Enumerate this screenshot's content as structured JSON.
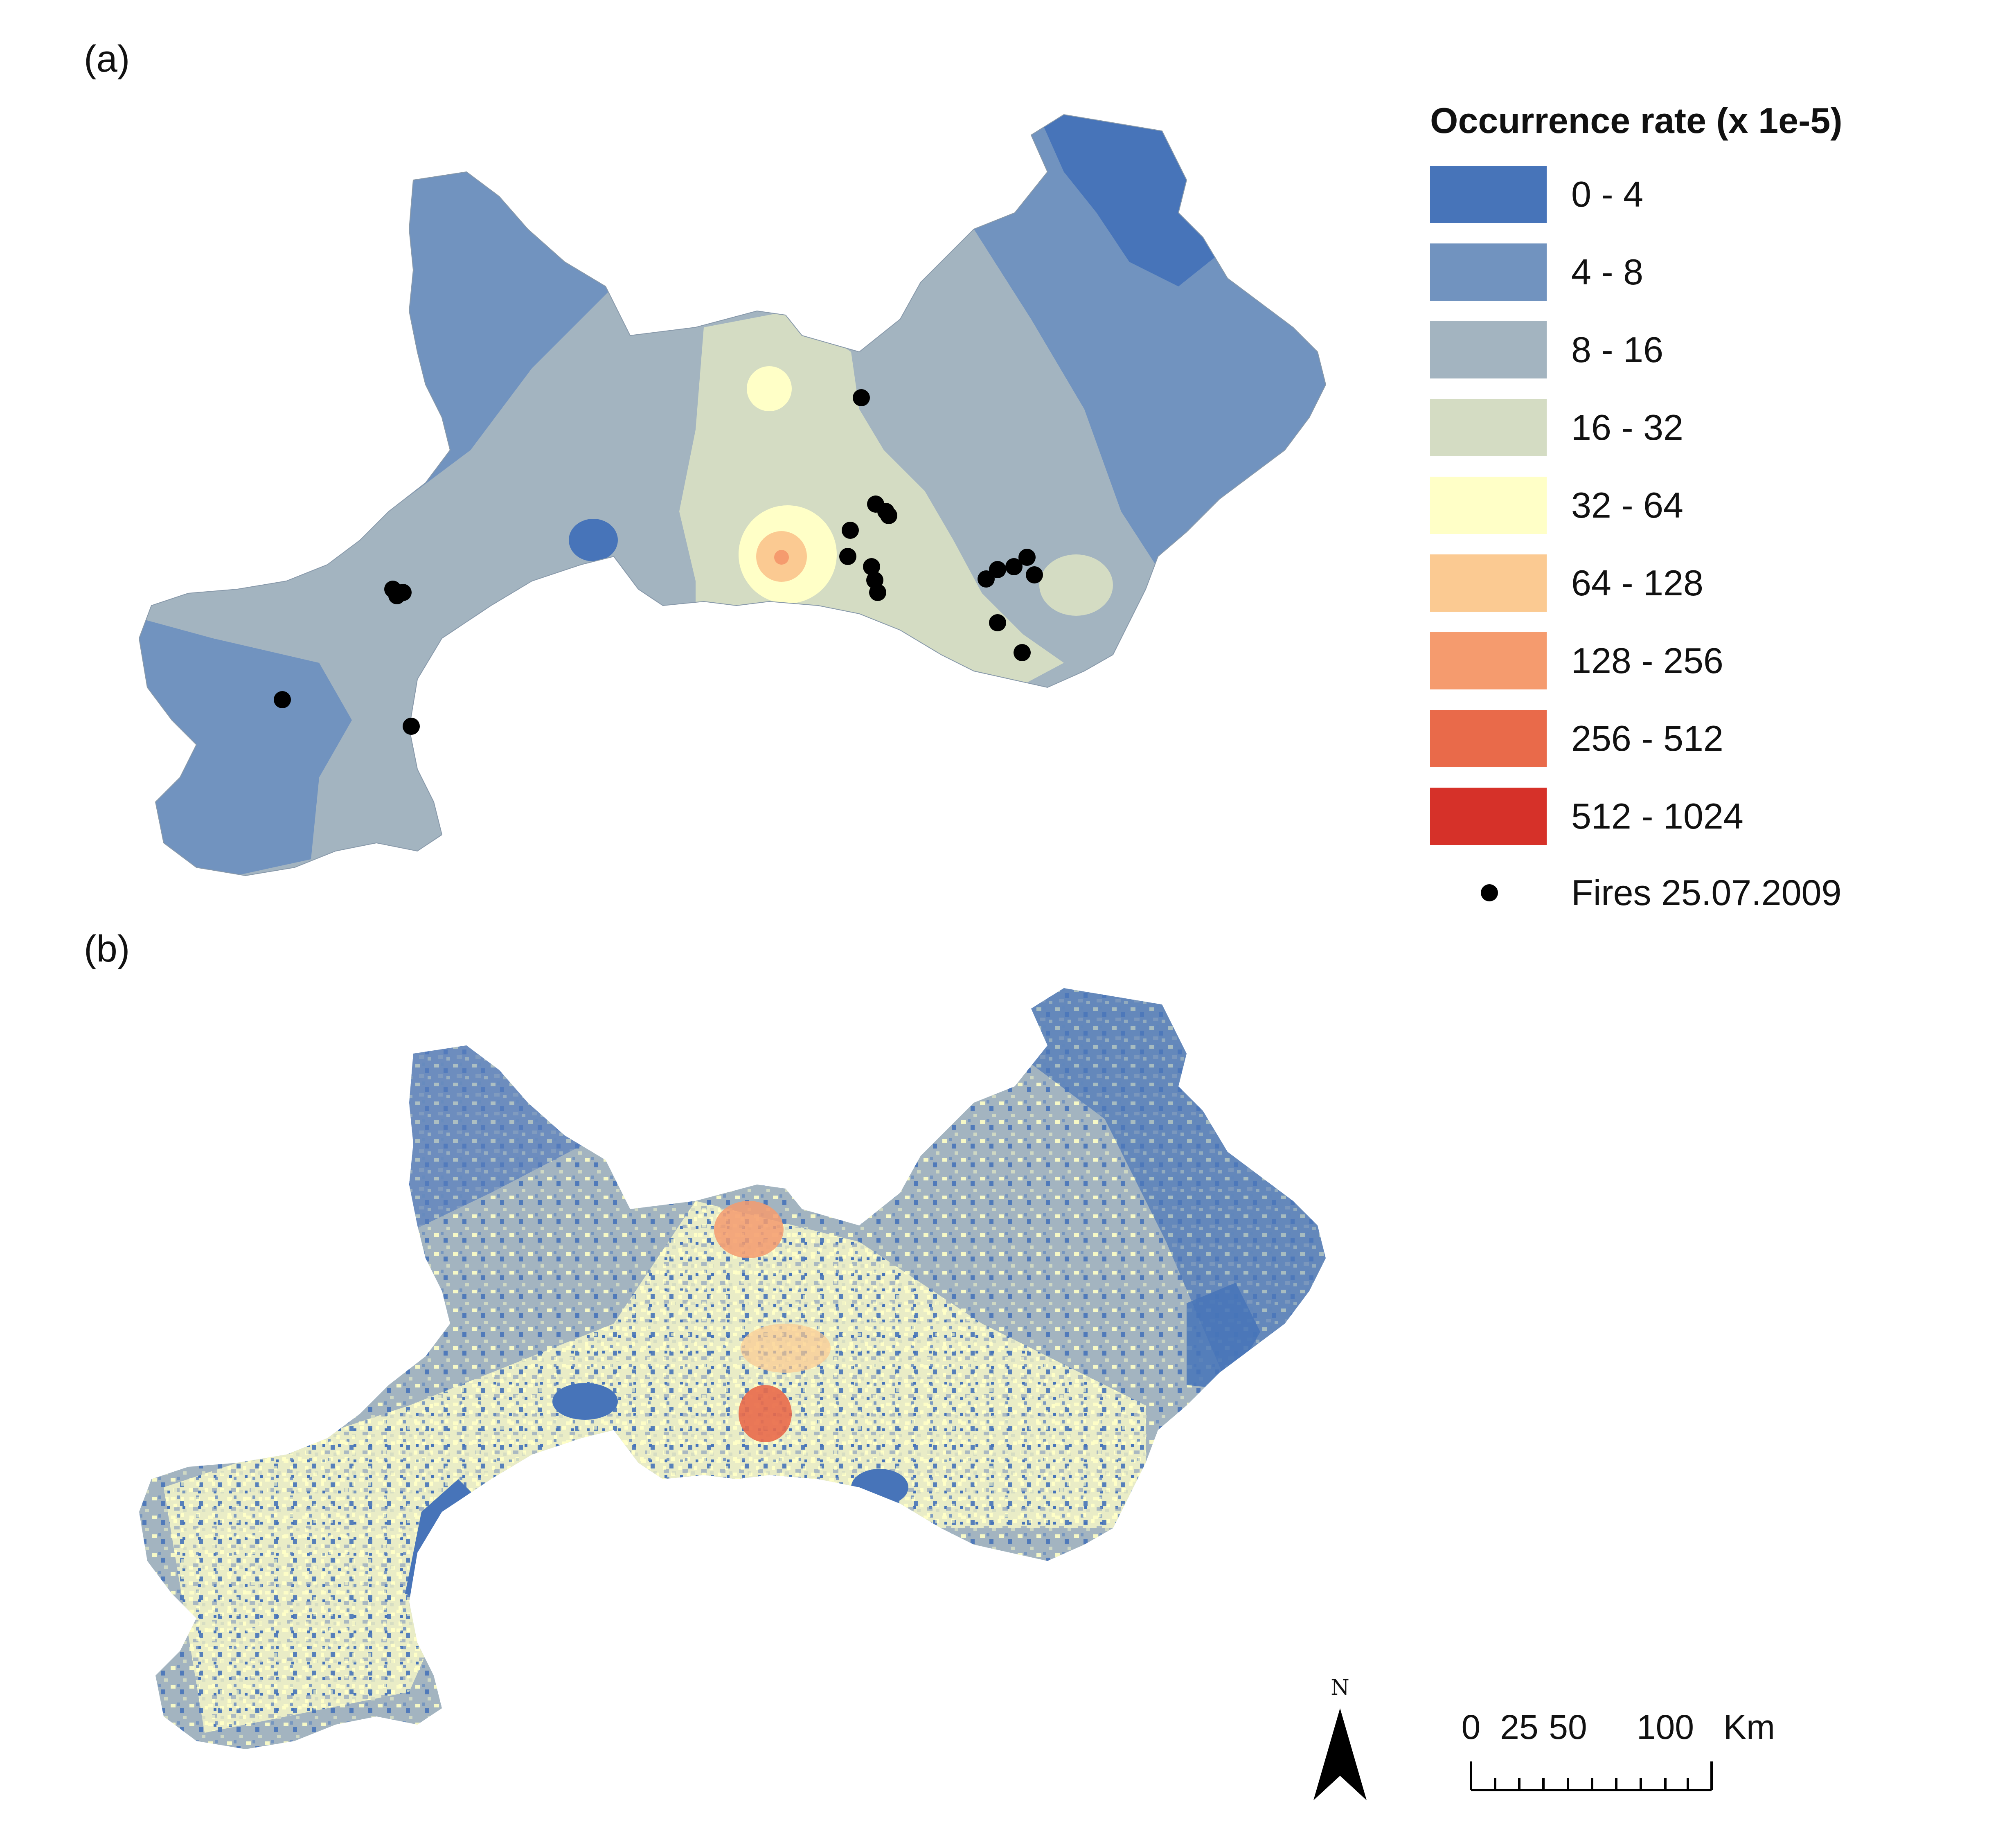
{
  "panels": [
    {
      "label": "(a)"
    },
    {
      "label": "(b)"
    }
  ],
  "legend": {
    "title": "Occurrence rate (x 1e-5)",
    "classes": [
      {
        "label": "0 - 4",
        "color": "#4774b9"
      },
      {
        "label": "4 - 8",
        "color": "#7193bf"
      },
      {
        "label": "8 - 16",
        "color": "#a3b4c0"
      },
      {
        "label": "16 - 32",
        "color": "#d4dcc3"
      },
      {
        "label": "32 - 64",
        "color": "#ffffc7"
      },
      {
        "label": "64 - 128",
        "color": "#fbca92"
      },
      {
        "label": "128 - 256",
        "color": "#f59b6e"
      },
      {
        "label": "256 - 512",
        "color": "#e96a4a"
      },
      {
        "label": "512 - 1024",
        "color": "#d63129"
      }
    ],
    "fires_label": "Fires 25.07.2009"
  },
  "north_arrow": {
    "label": "N"
  },
  "scale_bar": {
    "tick_labels": [
      "0",
      "25",
      "50",
      "100"
    ],
    "unit": "Km"
  }
}
